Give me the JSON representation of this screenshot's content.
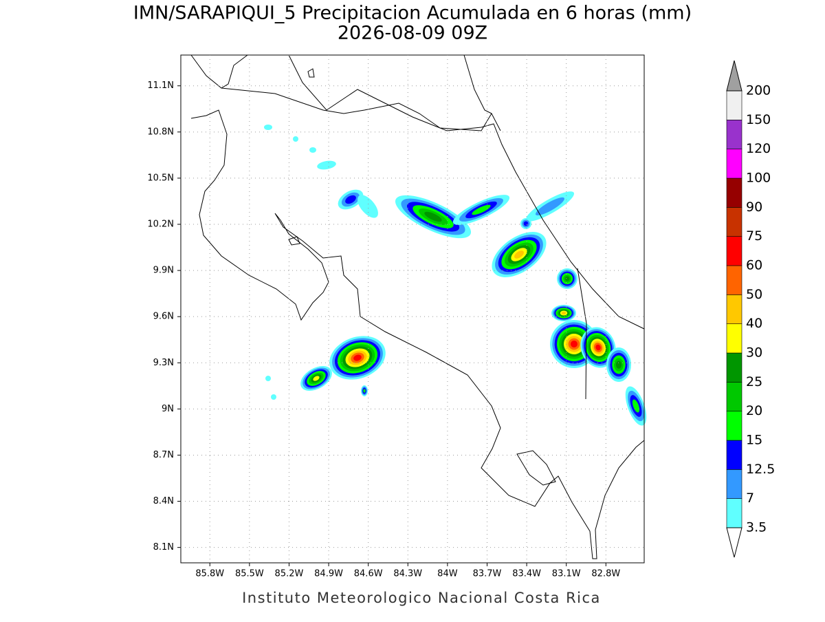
{
  "title": "IMN/SARAPIQUI_5 Precipitacion Acumulada en 6 horas (mm)",
  "subtitle": "2026-08-09 09Z",
  "footer": "Instituto Meteorologico Nacional Costa Rica",
  "map": {
    "xlim": [
      -86.02,
      -82.51
    ],
    "ylim": [
      8.0,
      11.3
    ],
    "xticks": [
      {
        "value": -85.8,
        "label": "85.8W"
      },
      {
        "value": -85.5,
        "label": "85.5W"
      },
      {
        "value": -85.2,
        "label": "85.2W"
      },
      {
        "value": -84.9,
        "label": "84.9W"
      },
      {
        "value": -84.6,
        "label": "84.6W"
      },
      {
        "value": -84.3,
        "label": "84.3W"
      },
      {
        "value": -84,
        "label": "84W"
      },
      {
        "value": -83.7,
        "label": "83.7W"
      },
      {
        "value": -83.4,
        "label": "83.4W"
      },
      {
        "value": -83.1,
        "label": "83.1W"
      },
      {
        "value": -82.8,
        "label": "82.8W"
      }
    ],
    "yticks": [
      {
        "value": 8.1,
        "label": "8.1N"
      },
      {
        "value": 8.4,
        "label": "8.4N"
      },
      {
        "value": 8.7,
        "label": "8.7N"
      },
      {
        "value": 9,
        "label": "9N"
      },
      {
        "value": 9.3,
        "label": "9.3N"
      },
      {
        "value": 9.6,
        "label": "9.6N"
      },
      {
        "value": 9.9,
        "label": "9.9N"
      },
      {
        "value": 10.2,
        "label": "10.2N"
      },
      {
        "value": 10.5,
        "label": "10.5N"
      },
      {
        "value": 10.8,
        "label": "10.8N"
      },
      {
        "value": 11.1,
        "label": "11.1N"
      }
    ],
    "grid": true
  },
  "colorbar": {
    "levels": [
      3.5,
      7,
      12.5,
      15,
      20,
      25,
      30,
      40,
      50,
      60,
      75,
      90,
      100,
      120,
      150,
      200
    ],
    "colors": [
      "#60ffff",
      "#3399ff",
      "#0000ff",
      "#00ff00",
      "#00c800",
      "#009600",
      "#ffff00",
      "#ffc800",
      "#ff6400",
      "#ff0000",
      "#c83200",
      "#960000",
      "#ff00ff",
      "#9932cc",
      "#f0f0f0"
    ],
    "under_color": "#ffffff",
    "over_color": "#a0a0a0"
  }
}
